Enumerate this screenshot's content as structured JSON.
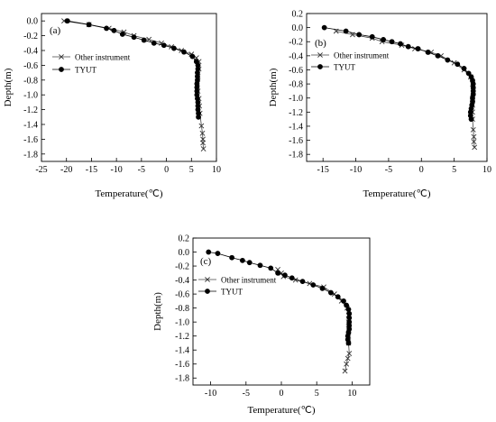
{
  "chart_data": [
    {
      "type": "line",
      "panel_label": "(a)",
      "xlabel": "Temperature(℃)",
      "ylabel": "Depth(m)",
      "xlim": [
        -25,
        10
      ],
      "ylim": [
        -1.9,
        0.1
      ],
      "x_ticks": [
        "-25",
        "-20",
        "-15",
        "-10",
        "-5",
        "0",
        "5",
        "10"
      ],
      "y_ticks": [
        "0.0",
        "-0.2",
        "-0.4",
        "-0.6",
        "-0.8",
        "-1.0",
        "-1.2",
        "-1.4",
        "-1.6",
        "-1.8"
      ],
      "legend_position": "top-left",
      "series": [
        {
          "name": "Other instrument",
          "marker": "x",
          "points": [
            [
              -20.5,
              0.0
            ],
            [
              -15.5,
              -0.05
            ],
            [
              -11.5,
              -0.1
            ],
            [
              -8.5,
              -0.15
            ],
            [
              -6.5,
              -0.2
            ],
            [
              -3.5,
              -0.25
            ],
            [
              -1.0,
              -0.3
            ],
            [
              1.0,
              -0.35
            ],
            [
              3.0,
              -0.4
            ],
            [
              5.0,
              -0.45
            ],
            [
              6.0,
              -0.5
            ],
            [
              6.5,
              -0.55
            ],
            [
              6.5,
              -0.65
            ],
            [
              6.3,
              -0.75
            ],
            [
              6.2,
              -0.85
            ],
            [
              6.3,
              -0.95
            ],
            [
              6.5,
              -1.05
            ],
            [
              6.6,
              -1.15
            ],
            [
              6.7,
              -1.25
            ],
            [
              7.0,
              -1.42
            ],
            [
              7.2,
              -1.52
            ],
            [
              7.3,
              -1.6
            ],
            [
              7.3,
              -1.65
            ],
            [
              7.4,
              -1.73
            ]
          ]
        },
        {
          "name": "TYUT",
          "marker": "circle",
          "points": [
            [
              -19.8,
              0.0
            ],
            [
              -15.5,
              -0.05
            ],
            [
              -12.0,
              -0.1
            ],
            [
              -10.5,
              -0.13
            ],
            [
              -8.8,
              -0.18
            ],
            [
              -6.5,
              -0.22
            ],
            [
              -4.5,
              -0.26
            ],
            [
              -2.5,
              -0.3
            ],
            [
              -0.5,
              -0.33
            ],
            [
              1.5,
              -0.37
            ],
            [
              3.5,
              -0.42
            ],
            [
              5.2,
              -0.48
            ],
            [
              6.0,
              -0.55
            ],
            [
              6.3,
              -0.6
            ],
            [
              6.3,
              -0.65
            ],
            [
              6.2,
              -0.7
            ],
            [
              6.2,
              -0.75
            ],
            [
              6.2,
              -0.8
            ],
            [
              6.1,
              -0.85
            ],
            [
              6.1,
              -0.9
            ],
            [
              6.1,
              -0.95
            ],
            [
              6.1,
              -1.0
            ],
            [
              6.2,
              -1.05
            ],
            [
              6.3,
              -1.1
            ],
            [
              6.3,
              -1.15
            ],
            [
              6.3,
              -1.2
            ],
            [
              6.4,
              -1.25
            ],
            [
              6.4,
              -1.3
            ]
          ]
        }
      ]
    },
    {
      "type": "line",
      "panel_label": "(b)",
      "xlabel": "Temperature(℃)",
      "ylabel": "Depth(m)",
      "xlim": [
        -17.5,
        10
      ],
      "ylim": [
        -1.9,
        0.2
      ],
      "x_ticks": [
        "-15",
        "-10",
        "-5",
        "0",
        "5",
        "10"
      ],
      "y_ticks": [
        "0.2",
        "0.0",
        "-0.2",
        "-0.4",
        "-0.6",
        "-0.8",
        "-1.0",
        "-1.2",
        "-1.4",
        "-1.6",
        "-1.8"
      ],
      "legend_position": "top-left",
      "series": [
        {
          "name": "Other instrument",
          "marker": "x",
          "points": [
            [
              -13.0,
              -0.05
            ],
            [
              -10.5,
              -0.1
            ],
            [
              -7.5,
              -0.15
            ],
            [
              -6.0,
              -0.2
            ],
            [
              -3.0,
              -0.25
            ],
            [
              -1.0,
              -0.3
            ],
            [
              1.5,
              -0.35
            ],
            [
              3.0,
              -0.4
            ],
            [
              5.0,
              -0.5
            ],
            [
              6.5,
              -0.6
            ],
            [
              7.5,
              -0.7
            ],
            [
              7.8,
              -0.8
            ],
            [
              7.9,
              -0.9
            ],
            [
              7.8,
              -1.0
            ],
            [
              7.8,
              -1.1
            ],
            [
              7.8,
              -1.2
            ],
            [
              7.8,
              -1.3
            ],
            [
              7.9,
              -1.45
            ],
            [
              8.0,
              -1.55
            ],
            [
              8.0,
              -1.62
            ],
            [
              8.1,
              -1.7
            ]
          ]
        },
        {
          "name": "TYUT",
          "marker": "circle",
          "points": [
            [
              -14.8,
              0.0
            ],
            [
              -11.5,
              -0.05
            ],
            [
              -9.5,
              -0.1
            ],
            [
              -7.5,
              -0.13
            ],
            [
              -5.8,
              -0.17
            ],
            [
              -4.5,
              -0.2
            ],
            [
              -3.2,
              -0.23
            ],
            [
              -2.0,
              -0.27
            ],
            [
              -0.5,
              -0.3
            ],
            [
              1.0,
              -0.35
            ],
            [
              2.5,
              -0.4
            ],
            [
              4.0,
              -0.46
            ],
            [
              5.5,
              -0.52
            ],
            [
              6.5,
              -0.58
            ],
            [
              7.2,
              -0.65
            ],
            [
              7.6,
              -0.7
            ],
            [
              7.8,
              -0.75
            ],
            [
              7.9,
              -0.8
            ],
            [
              7.9,
              -0.85
            ],
            [
              7.9,
              -0.9
            ],
            [
              7.9,
              -0.95
            ],
            [
              7.8,
              -1.0
            ],
            [
              7.8,
              -1.05
            ],
            [
              7.7,
              -1.1
            ],
            [
              7.6,
              -1.15
            ],
            [
              7.5,
              -1.2
            ],
            [
              7.5,
              -1.25
            ],
            [
              7.6,
              -1.3
            ]
          ]
        }
      ]
    },
    {
      "type": "line",
      "panel_label": "(c)",
      "xlabel": "Temperature(℃)",
      "ylabel": "Depth(m)",
      "xlim": [
        -12.5,
        12.5
      ],
      "ylim": [
        -1.9,
        0.2
      ],
      "x_ticks": [
        "-10",
        "-5",
        "0",
        "5",
        "10"
      ],
      "y_ticks": [
        "0.2",
        "0.0",
        "-0.2",
        "-0.4",
        "-0.6",
        "-0.8",
        "-1.0",
        "-1.2",
        "-1.4",
        "-1.6",
        "-1.8"
      ],
      "legend_position": "center-left",
      "series": [
        {
          "name": "Other instrument",
          "marker": "x",
          "points": [
            [
              -0.5,
              -0.25
            ],
            [
              0.0,
              -0.3
            ],
            [
              0.3,
              -0.35
            ],
            [
              2.0,
              -0.4
            ],
            [
              4.0,
              -0.45
            ],
            [
              6.0,
              -0.5
            ],
            [
              7.5,
              -0.6
            ],
            [
              8.5,
              -0.7
            ],
            [
              9.3,
              -0.8
            ],
            [
              9.5,
              -0.9
            ],
            [
              9.5,
              -1.0
            ],
            [
              9.5,
              -1.1
            ],
            [
              9.5,
              -1.2
            ],
            [
              9.5,
              -1.3
            ],
            [
              9.6,
              -1.45
            ],
            [
              9.4,
              -1.52
            ],
            [
              9.2,
              -1.6
            ],
            [
              9.0,
              -1.7
            ]
          ]
        },
        {
          "name": "TYUT",
          "marker": "circle",
          "points": [
            [
              -10.3,
              0.0
            ],
            [
              -9.0,
              -0.02
            ],
            [
              -7.0,
              -0.08
            ],
            [
              -5.5,
              -0.12
            ],
            [
              -4.5,
              -0.15
            ],
            [
              -3.0,
              -0.19
            ],
            [
              -1.5,
              -0.23
            ],
            [
              -0.5,
              -0.3
            ],
            [
              0.5,
              -0.33
            ],
            [
              1.5,
              -0.37
            ],
            [
              3.0,
              -0.42
            ],
            [
              4.5,
              -0.47
            ],
            [
              5.8,
              -0.52
            ],
            [
              7.0,
              -0.58
            ],
            [
              8.0,
              -0.64
            ],
            [
              8.8,
              -0.7
            ],
            [
              9.2,
              -0.76
            ],
            [
              9.5,
              -0.82
            ],
            [
              9.6,
              -0.88
            ],
            [
              9.6,
              -0.94
            ],
            [
              9.6,
              -1.0
            ],
            [
              9.6,
              -1.05
            ],
            [
              9.6,
              -1.1
            ],
            [
              9.5,
              -1.15
            ],
            [
              9.4,
              -1.2
            ],
            [
              9.4,
              -1.25
            ],
            [
              9.5,
              -1.3
            ]
          ]
        }
      ]
    }
  ]
}
